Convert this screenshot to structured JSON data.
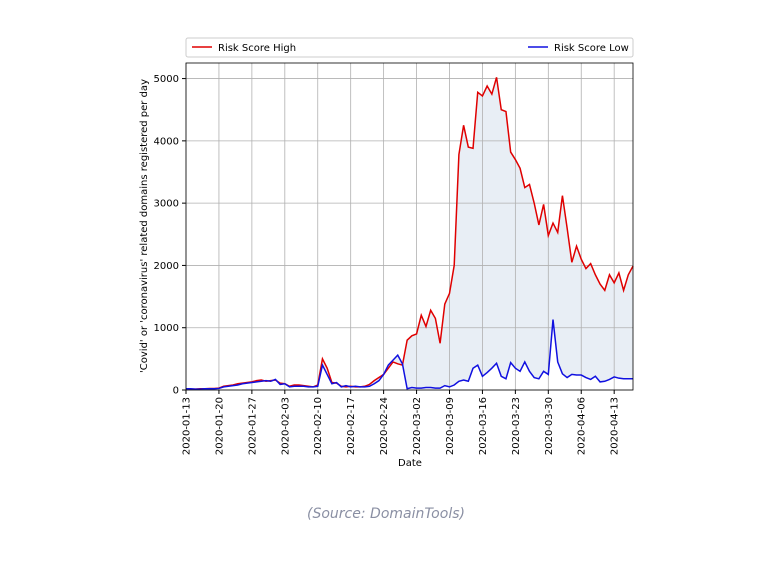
{
  "chart_data": {
    "type": "line",
    "x_label": "Date",
    "y_label": "'Covid' or 'coronavirus' related domains registered per day",
    "source": "(Source: DomainTools)",
    "x": [
      "2020-01-13",
      "2020-01-14",
      "2020-01-15",
      "2020-01-16",
      "2020-01-17",
      "2020-01-18",
      "2020-01-19",
      "2020-01-20",
      "2020-01-21",
      "2020-01-22",
      "2020-01-23",
      "2020-01-24",
      "2020-01-25",
      "2020-01-26",
      "2020-01-27",
      "2020-01-28",
      "2020-01-29",
      "2020-01-30",
      "2020-01-31",
      "2020-02-01",
      "2020-02-02",
      "2020-02-03",
      "2020-02-04",
      "2020-02-05",
      "2020-02-06",
      "2020-02-07",
      "2020-02-08",
      "2020-02-09",
      "2020-02-10",
      "2020-02-11",
      "2020-02-12",
      "2020-02-13",
      "2020-02-14",
      "2020-02-15",
      "2020-02-16",
      "2020-02-17",
      "2020-02-18",
      "2020-02-19",
      "2020-02-20",
      "2020-02-21",
      "2020-02-22",
      "2020-02-23",
      "2020-02-24",
      "2020-02-25",
      "2020-02-26",
      "2020-02-27",
      "2020-02-28",
      "2020-02-29",
      "2020-03-01",
      "2020-03-02",
      "2020-03-03",
      "2020-03-04",
      "2020-03-05",
      "2020-03-06",
      "2020-03-07",
      "2020-03-08",
      "2020-03-09",
      "2020-03-10",
      "2020-03-11",
      "2020-03-12",
      "2020-03-13",
      "2020-03-14",
      "2020-03-15",
      "2020-03-16",
      "2020-03-17",
      "2020-03-18",
      "2020-03-19",
      "2020-03-20",
      "2020-03-21",
      "2020-03-22",
      "2020-03-23",
      "2020-03-24",
      "2020-03-25",
      "2020-03-26",
      "2020-03-27",
      "2020-03-28",
      "2020-03-29",
      "2020-03-30",
      "2020-03-31",
      "2020-04-01",
      "2020-04-02",
      "2020-04-03",
      "2020-04-04",
      "2020-04-05",
      "2020-04-06",
      "2020-04-07",
      "2020-04-08",
      "2020-04-09",
      "2020-04-10",
      "2020-04-11",
      "2020-04-12",
      "2020-04-13",
      "2020-04-14",
      "2020-04-15",
      "2020-04-16",
      "2020-04-17"
    ],
    "series": [
      {
        "name": "Risk Score High",
        "color": "#e00000",
        "values": [
          20,
          15,
          15,
          20,
          20,
          25,
          25,
          30,
          60,
          70,
          80,
          100,
          110,
          120,
          130,
          150,
          160,
          140,
          150,
          160,
          110,
          100,
          60,
          80,
          80,
          70,
          60,
          50,
          80,
          500,
          350,
          120,
          110,
          60,
          50,
          60,
          50,
          50,
          60,
          90,
          150,
          200,
          250,
          350,
          450,
          420,
          400,
          800,
          870,
          900,
          1200,
          1020,
          1280,
          1150,
          750,
          1380,
          1550,
          2000,
          3780,
          4250,
          3900,
          3880,
          4780,
          4720,
          4880,
          4750,
          5020,
          4500,
          4470,
          3820,
          3700,
          3560,
          3250,
          3300,
          3000,
          2650,
          2980,
          2480,
          2680,
          2530,
          3120,
          2600,
          2050,
          2310,
          2100,
          1950,
          2030,
          1850,
          1700,
          1600,
          1850,
          1720,
          1880,
          1600,
          1850,
          1990
        ]
      },
      {
        "name": "Risk Score Low",
        "color": "#1010e0",
        "values": [
          20,
          20,
          15,
          15,
          20,
          20,
          20,
          25,
          50,
          60,
          70,
          80,
          100,
          110,
          120,
          130,
          140,
          150,
          140,
          170,
          90,
          100,
          50,
          60,
          60,
          60,
          50,
          50,
          60,
          400,
          250,
          100,
          120,
          50,
          70,
          50,
          60,
          50,
          50,
          60,
          100,
          150,
          250,
          400,
          480,
          560,
          420,
          20,
          40,
          30,
          30,
          40,
          40,
          30,
          30,
          70,
          50,
          80,
          140,
          160,
          140,
          350,
          400,
          220,
          280,
          350,
          430,
          220,
          180,
          440,
          350,
          300,
          450,
          300,
          200,
          180,
          300,
          250,
          1130,
          450,
          260,
          200,
          250,
          240,
          240,
          200,
          170,
          220,
          130,
          140,
          170,
          210,
          190,
          180,
          180,
          180
        ]
      }
    ],
    "fill_between_color": "#e8eef5",
    "xlim": [
      "2020-01-13",
      "2020-04-17"
    ],
    "xticks": [
      "2020-01-13",
      "2020-01-20",
      "2020-01-27",
      "2020-02-03",
      "2020-02-10",
      "2020-02-17",
      "2020-02-24",
      "2020-03-02",
      "2020-03-09",
      "2020-03-16",
      "2020-03-23",
      "2020-03-30",
      "2020-04-06",
      "2020-04-13"
    ],
    "ylim": [
      0,
      5250
    ],
    "yticks": [
      0,
      1000,
      2000,
      3000,
      4000,
      5000
    ],
    "grid": true,
    "legend": "top"
  }
}
